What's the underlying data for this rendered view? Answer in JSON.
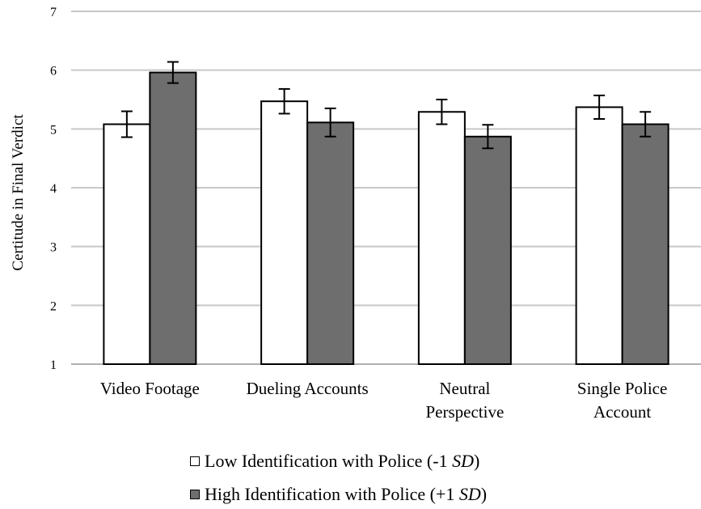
{
  "chart_data": {
    "type": "bar",
    "title": "",
    "xlabel": "",
    "ylabel": "Certitude in Final Verdict",
    "ylim": [
      1,
      7
    ],
    "yticks": [
      1,
      2,
      3,
      4,
      5,
      6,
      7
    ],
    "grid": true,
    "legend_position": "bottom",
    "categories": [
      [
        "Video Footage"
      ],
      [
        "Dueling Accounts"
      ],
      [
        "Neutral",
        "Perspective"
      ],
      [
        "Single Police",
        "Account"
      ]
    ],
    "series": [
      {
        "name": "Low Identification with Police (-1 SD)",
        "legend_prefix": "Low Identification with Police (-1 ",
        "legend_sd": "SD",
        "legend_suffix": ")",
        "color": "#ffffff",
        "values": [
          5.08,
          5.47,
          5.29,
          5.37
        ],
        "error": [
          0.22,
          0.21,
          0.21,
          0.2
        ]
      },
      {
        "name": "High Identification with Police (+1 SD)",
        "legend_prefix": "High Identification with Police (+1 ",
        "legend_sd": "SD",
        "legend_suffix": ")",
        "color": "#6e6e6e",
        "values": [
          5.96,
          5.11,
          4.87,
          5.08
        ],
        "error": [
          0.18,
          0.24,
          0.2,
          0.21
        ]
      }
    ]
  }
}
